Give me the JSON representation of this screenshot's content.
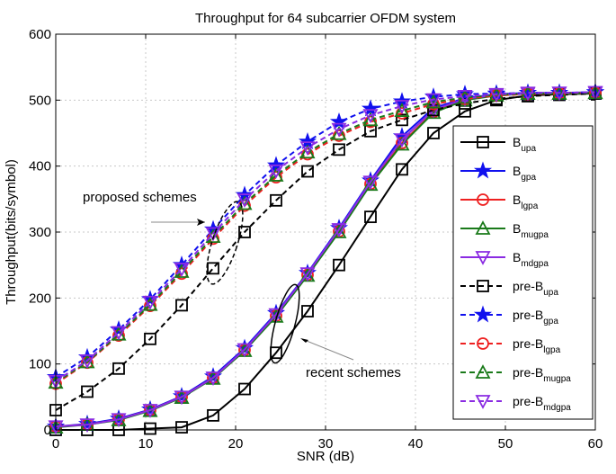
{
  "chart_data": {
    "type": "line",
    "title": "Throughput for 64 subcarrier OFDM system",
    "xlabel": "SNR (dB)",
    "ylabel": "Throughput(bits/symbol)",
    "xlim": [
      0,
      60
    ],
    "ylim": [
      0,
      600
    ],
    "xticks": [
      0,
      10,
      20,
      30,
      40,
      50,
      60
    ],
    "yticks": [
      0,
      100,
      200,
      300,
      400,
      500,
      600
    ],
    "grid": true,
    "legend_position": "right",
    "x": [
      0,
      3.5,
      7,
      10.5,
      14,
      17.5,
      21,
      24.5,
      28,
      31.5,
      35,
      38.5,
      42,
      45.5,
      49,
      52.5,
      56,
      60
    ],
    "series": [
      {
        "name": "B_upa",
        "base": "B",
        "sub": "upa",
        "color": "#000000",
        "dash": "solid",
        "marker": "square",
        "values": [
          0,
          0,
          0,
          2,
          4,
          22,
          62,
          117,
          180,
          250,
          323,
          395,
          450,
          483,
          500,
          507,
          509,
          510
        ]
      },
      {
        "name": "B_gpa",
        "base": "B",
        "sub": "gpa",
        "color": "#1010ee",
        "dash": "solid",
        "marker": "star",
        "values": [
          5,
          9,
          17,
          31,
          51,
          81,
          124,
          177,
          238,
          306,
          378,
          445,
          488,
          503,
          509,
          511,
          511,
          512
        ]
      },
      {
        "name": "B_lgpa",
        "base": "B",
        "sub": "lgpa",
        "color": "#ee2020",
        "dash": "solid",
        "marker": "circle",
        "values": [
          5,
          8,
          16,
          30,
          50,
          79,
          121,
          173,
          235,
          301,
          373,
          435,
          482,
          501,
          508,
          510,
          511,
          511
        ]
      },
      {
        "name": "B_mugpa",
        "base": "B",
        "sub": "mugpa",
        "color": "#1a7a1a",
        "dash": "solid",
        "marker": "triangle",
        "values": [
          4,
          8,
          15,
          29,
          49,
          78,
          120,
          172,
          234,
          300,
          372,
          433,
          481,
          500,
          507,
          510,
          510,
          511
        ]
      },
      {
        "name": "B_mdgpa",
        "base": "B",
        "sub": "mdgpa",
        "color": "#8a2be2",
        "dash": "solid",
        "marker": "triangle-down",
        "values": [
          5,
          8,
          16,
          30,
          50,
          79,
          122,
          175,
          237,
          304,
          376,
          440,
          485,
          502,
          508,
          510,
          511,
          511
        ]
      },
      {
        "name": "pre-B_upa",
        "base": "pre-B",
        "sub": "upa",
        "color": "#000000",
        "dash": "dashed",
        "marker": "square",
        "values": [
          30,
          58,
          93,
          138,
          189,
          245,
          300,
          348,
          392,
          425,
          453,
          470,
          485,
          495,
          502,
          506,
          508,
          510
        ]
      },
      {
        "name": "pre-B_gpa",
        "base": "pre-B",
        "sub": "gpa",
        "color": "#1010ee",
        "dash": "dashed",
        "marker": "star",
        "values": [
          80,
          110,
          152,
          198,
          250,
          304,
          356,
          401,
          437,
          467,
          487,
          498,
          505,
          509,
          510,
          511,
          511,
          512
        ]
      },
      {
        "name": "pre-B_lgpa",
        "base": "pre-B",
        "sub": "lgpa",
        "color": "#ee2020",
        "dash": "dashed",
        "marker": "circle",
        "values": [
          70,
          102,
          143,
          188,
          237,
          290,
          340,
          383,
          418,
          446,
          467,
          480,
          494,
          502,
          507,
          509,
          510,
          511
        ]
      },
      {
        "name": "pre-B_mugpa",
        "base": "pre-B",
        "sub": "mugpa",
        "color": "#1a7a1a",
        "dash": "dashed",
        "marker": "triangle",
        "values": [
          72,
          103,
          145,
          190,
          240,
          293,
          343,
          386,
          421,
          449,
          470,
          484,
          497,
          504,
          508,
          510,
          510,
          511
        ]
      },
      {
        "name": "pre-B_mdgpa",
        "base": "pre-B",
        "sub": "mdgpa",
        "color": "#8a2be2",
        "dash": "dashed",
        "marker": "triangle-down",
        "values": [
          74,
          105,
          148,
          194,
          244,
          298,
          349,
          393,
          428,
          456,
          477,
          491,
          501,
          506,
          509,
          511,
          511,
          512
        ]
      }
    ],
    "annotations": [
      {
        "text": "proposed schemes"
      },
      {
        "text": "recent schemes"
      }
    ]
  }
}
